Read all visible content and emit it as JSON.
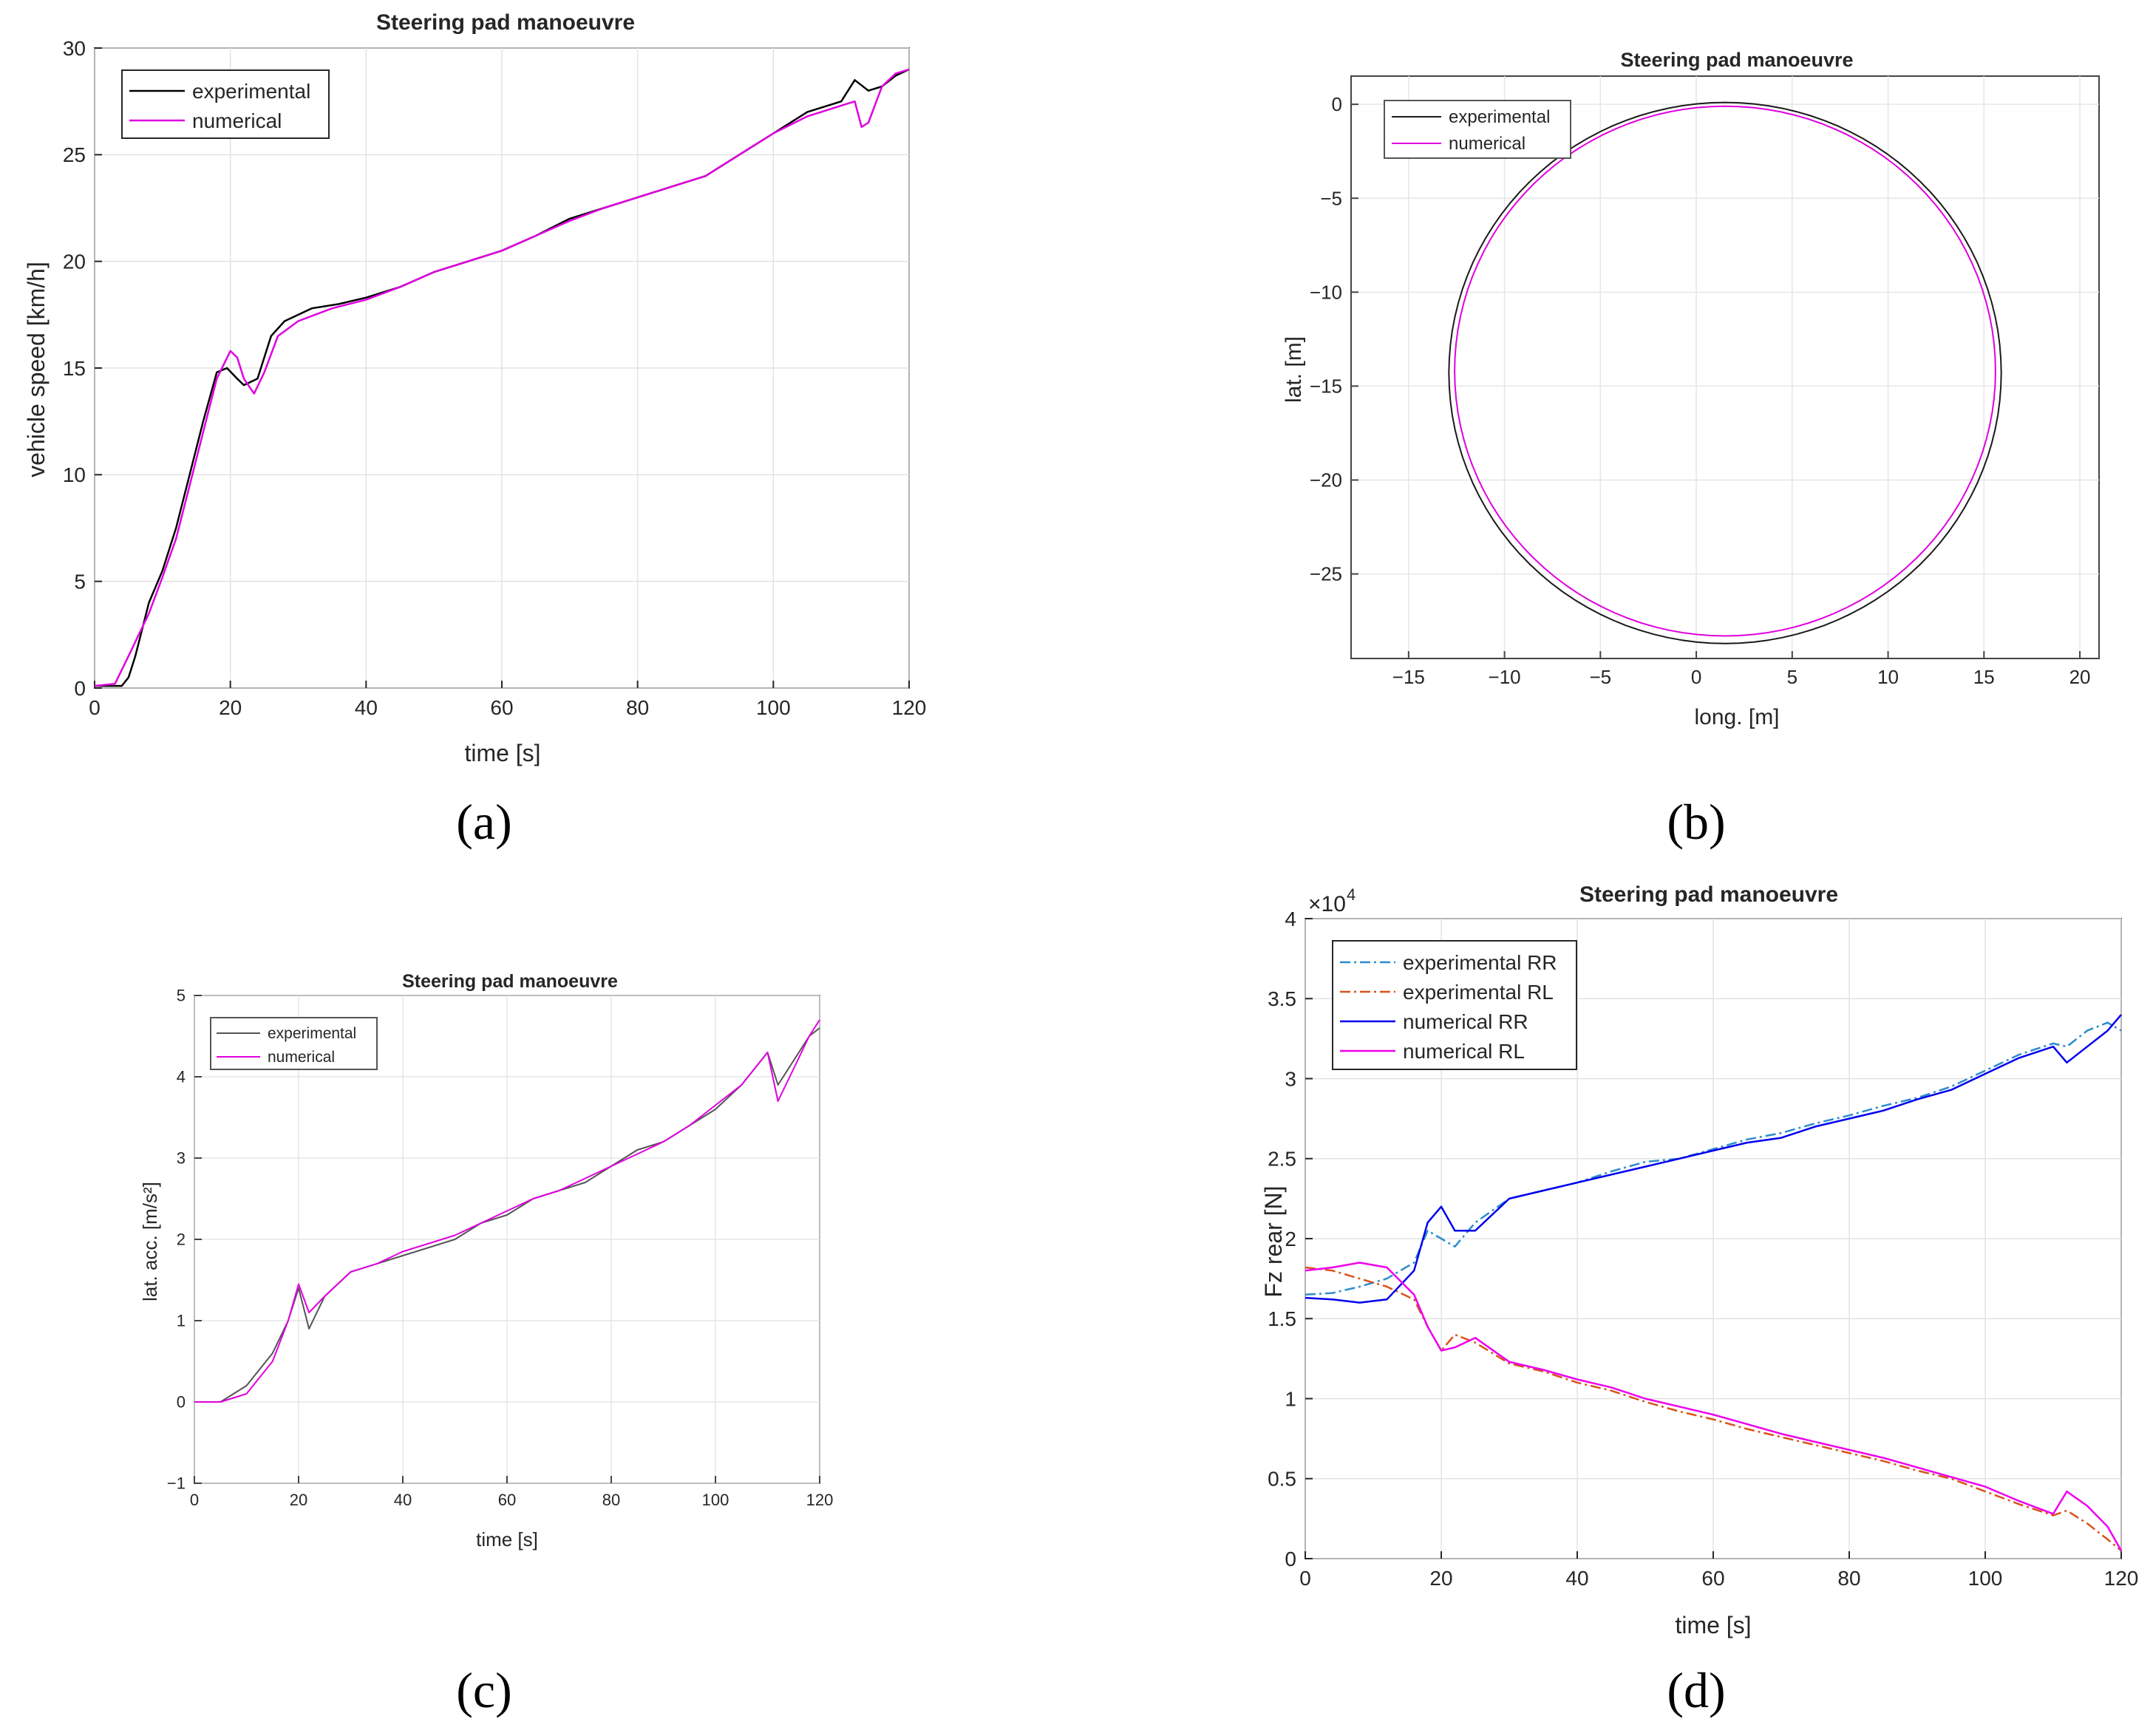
{
  "chart_data": [
    {
      "id": "a",
      "type": "line",
      "panel_label": "(a)",
      "title": "Steering pad manoeuvre",
      "xlabel": "time [s]",
      "ylabel": "vehicle speed [km/h]",
      "xlim": [
        0,
        120
      ],
      "ylim": [
        0,
        30
      ],
      "xticks": [
        0,
        20,
        40,
        60,
        80,
        100,
        120
      ],
      "yticks": [
        0,
        5,
        10,
        15,
        20,
        25,
        30
      ],
      "grid": true,
      "legend": "top-left",
      "series": [
        {
          "name": "experimental",
          "color": "#000000",
          "dash": "",
          "x": [
            0,
            4,
            5,
            6,
            8,
            10,
            12,
            14,
            16,
            18,
            19.5,
            21,
            22,
            24,
            26,
            28,
            32,
            36,
            40,
            45,
            50,
            55,
            60,
            65,
            70,
            75,
            80,
            85,
            90,
            95,
            100,
            105,
            110,
            112,
            114,
            116,
            118,
            120
          ],
          "y": [
            0.1,
            0.1,
            0.5,
            1.5,
            4,
            5.5,
            7.5,
            10,
            12.5,
            14.8,
            15,
            14.5,
            14.2,
            14.5,
            16.5,
            17.2,
            17.8,
            18,
            18.3,
            18.8,
            19.5,
            20,
            20.5,
            21.2,
            22,
            22.5,
            23,
            23.5,
            24,
            25,
            26,
            27,
            27.5,
            28.5,
            28,
            28.2,
            28.7,
            29
          ]
        },
        {
          "name": "numerical",
          "color": "#e000e0",
          "dash": "",
          "x": [
            0,
            3,
            5,
            8,
            10,
            12,
            14,
            16,
            18,
            20,
            21,
            22,
            23.5,
            25,
            27,
            30,
            35,
            40,
            45,
            50,
            55,
            60,
            65,
            70,
            75,
            80,
            85,
            90,
            95,
            100,
            105,
            110,
            112,
            113,
            114,
            116,
            118,
            120
          ],
          "y": [
            0.1,
            0.2,
            1.5,
            3.5,
            5.2,
            7,
            9.5,
            12,
            14.5,
            15.8,
            15.5,
            14.5,
            13.8,
            14.8,
            16.5,
            17.2,
            17.8,
            18.2,
            18.8,
            19.5,
            20,
            20.5,
            21.2,
            21.9,
            22.5,
            23,
            23.5,
            24,
            25,
            26,
            26.8,
            27.3,
            27.5,
            26.3,
            26.5,
            28.2,
            28.8,
            29
          ]
        }
      ]
    },
    {
      "id": "b",
      "type": "line",
      "panel_label": "(b)",
      "title": "Steering pad manoeuvre",
      "xlabel": "long. [m]",
      "ylabel": "lat. [m]",
      "xlim": [
        -18,
        21
      ],
      "ylim": [
        -29.5,
        1.5
      ],
      "xticks": [
        -15,
        -10,
        -5,
        0,
        5,
        10,
        15,
        20
      ],
      "yticks": [
        -25,
        -20,
        -15,
        -10,
        -5,
        0
      ],
      "grid": true,
      "legend": "top-left",
      "series": [
        {
          "name": "experimental",
          "color": "#1a1a1a",
          "dash": "",
          "circle": {
            "cx": 1.5,
            "cy": -14.3,
            "r": 14.4
          }
        },
        {
          "name": "numerical",
          "color": "#e000e0",
          "dash": "",
          "circle": {
            "cx": 1.5,
            "cy": -14.2,
            "r": 14.1
          }
        }
      ]
    },
    {
      "id": "c",
      "type": "line",
      "panel_label": "(c)",
      "title": "Steering pad manoeuvre",
      "xlabel": "time [s]",
      "ylabel": "lat. acc. [m/s²]",
      "xlim": [
        0,
        120
      ],
      "ylim": [
        -1,
        5
      ],
      "xticks": [
        0,
        20,
        40,
        60,
        80,
        100,
        120
      ],
      "yticks": [
        -1,
        0,
        1,
        2,
        3,
        4,
        5
      ],
      "grid": true,
      "legend": "top-left",
      "series": [
        {
          "name": "experimental",
          "color": "#555555",
          "dash": "",
          "x": [
            0,
            5,
            10,
            15,
            18,
            20,
            22,
            25,
            30,
            35,
            40,
            45,
            50,
            55,
            60,
            65,
            70,
            75,
            80,
            85,
            90,
            95,
            100,
            105,
            110,
            112,
            115,
            118,
            120
          ],
          "y": [
            0,
            0,
            0.2,
            0.6,
            1,
            1.4,
            0.9,
            1.3,
            1.6,
            1.7,
            1.8,
            1.9,
            2.0,
            2.2,
            2.3,
            2.5,
            2.6,
            2.7,
            2.9,
            3.1,
            3.2,
            3.4,
            3.6,
            3.9,
            4.3,
            3.9,
            4.2,
            4.5,
            4.6
          ]
        },
        {
          "name": "numerical",
          "color": "#e000e0",
          "dash": "",
          "x": [
            0,
            5,
            10,
            15,
            18,
            20,
            22,
            25,
            30,
            35,
            40,
            45,
            50,
            55,
            60,
            65,
            70,
            75,
            80,
            85,
            90,
            95,
            100,
            105,
            110,
            112,
            115,
            118,
            120
          ],
          "y": [
            0,
            0,
            0.1,
            0.5,
            1.0,
            1.45,
            1.1,
            1.3,
            1.6,
            1.7,
            1.85,
            1.95,
            2.05,
            2.2,
            2.35,
            2.5,
            2.6,
            2.75,
            2.9,
            3.05,
            3.2,
            3.4,
            3.65,
            3.9,
            4.3,
            3.7,
            4.1,
            4.5,
            4.7
          ]
        }
      ]
    },
    {
      "id": "d",
      "type": "line",
      "panel_label": "(d)",
      "title": "Steering pad manoeuvre",
      "xlabel": "time [s]",
      "ylabel": "Fz rear [N]",
      "exponent_label": "×10",
      "exponent_power": "4",
      "xlim": [
        0,
        120
      ],
      "ylim": [
        0,
        4
      ],
      "xticks": [
        0,
        20,
        40,
        60,
        80,
        100,
        120
      ],
      "yticks": [
        0,
        0.5,
        1,
        1.5,
        2,
        2.5,
        3,
        3.5,
        4
      ],
      "grid": true,
      "legend": "top-left",
      "series": [
        {
          "name": "experimental RR",
          "color": "#2b8ccc",
          "dash": "dashdot",
          "x": [
            0,
            4,
            8,
            12,
            16,
            18,
            20,
            22,
            25,
            30,
            35,
            40,
            45,
            50,
            55,
            60,
            65,
            70,
            75,
            80,
            85,
            90,
            95,
            100,
            105,
            110,
            112,
            115,
            118,
            120
          ],
          "y": [
            1.65,
            1.66,
            1.7,
            1.75,
            1.85,
            2.05,
            2.0,
            1.95,
            2.1,
            2.25,
            2.3,
            2.35,
            2.42,
            2.48,
            2.5,
            2.56,
            2.62,
            2.66,
            2.72,
            2.77,
            2.83,
            2.88,
            2.95,
            3.05,
            3.15,
            3.22,
            3.2,
            3.3,
            3.35,
            3.3
          ]
        },
        {
          "name": "experimental RL",
          "color": "#d95319",
          "dash": "dashdot",
          "x": [
            0,
            4,
            8,
            12,
            16,
            18,
            20,
            22,
            25,
            30,
            35,
            40,
            45,
            50,
            55,
            60,
            65,
            70,
            75,
            80,
            85,
            90,
            95,
            100,
            105,
            110,
            112,
            115,
            118,
            120
          ],
          "y": [
            1.82,
            1.8,
            1.75,
            1.7,
            1.62,
            1.45,
            1.3,
            1.4,
            1.35,
            1.22,
            1.17,
            1.1,
            1.05,
            0.98,
            0.92,
            0.87,
            0.81,
            0.76,
            0.71,
            0.66,
            0.61,
            0.55,
            0.5,
            0.42,
            0.34,
            0.27,
            0.3,
            0.22,
            0.12,
            0.05
          ]
        },
        {
          "name": "numerical RR",
          "color": "#0000ee",
          "dash": "",
          "x": [
            0,
            4,
            8,
            12,
            16,
            18,
            20,
            22,
            25,
            30,
            35,
            40,
            45,
            50,
            55,
            60,
            65,
            70,
            75,
            80,
            85,
            90,
            95,
            100,
            105,
            110,
            112,
            115,
            118,
            120
          ],
          "y": [
            1.63,
            1.62,
            1.6,
            1.62,
            1.8,
            2.1,
            2.2,
            2.05,
            2.05,
            2.25,
            2.3,
            2.35,
            2.4,
            2.45,
            2.5,
            2.55,
            2.6,
            2.63,
            2.7,
            2.75,
            2.8,
            2.87,
            2.93,
            3.03,
            3.13,
            3.2,
            3.1,
            3.2,
            3.3,
            3.4
          ]
        },
        {
          "name": "numerical RL",
          "color": "#ee00ee",
          "dash": "",
          "x": [
            0,
            4,
            8,
            12,
            16,
            18,
            20,
            22,
            25,
            30,
            35,
            40,
            45,
            50,
            55,
            60,
            65,
            70,
            75,
            80,
            85,
            90,
            95,
            100,
            105,
            110,
            112,
            115,
            118,
            120
          ],
          "y": [
            1.8,
            1.82,
            1.85,
            1.82,
            1.65,
            1.45,
            1.3,
            1.32,
            1.38,
            1.23,
            1.18,
            1.12,
            1.07,
            1.0,
            0.95,
            0.9,
            0.84,
            0.78,
            0.73,
            0.68,
            0.63,
            0.57,
            0.51,
            0.45,
            0.36,
            0.28,
            0.42,
            0.33,
            0.2,
            0.05
          ]
        }
      ]
    }
  ]
}
